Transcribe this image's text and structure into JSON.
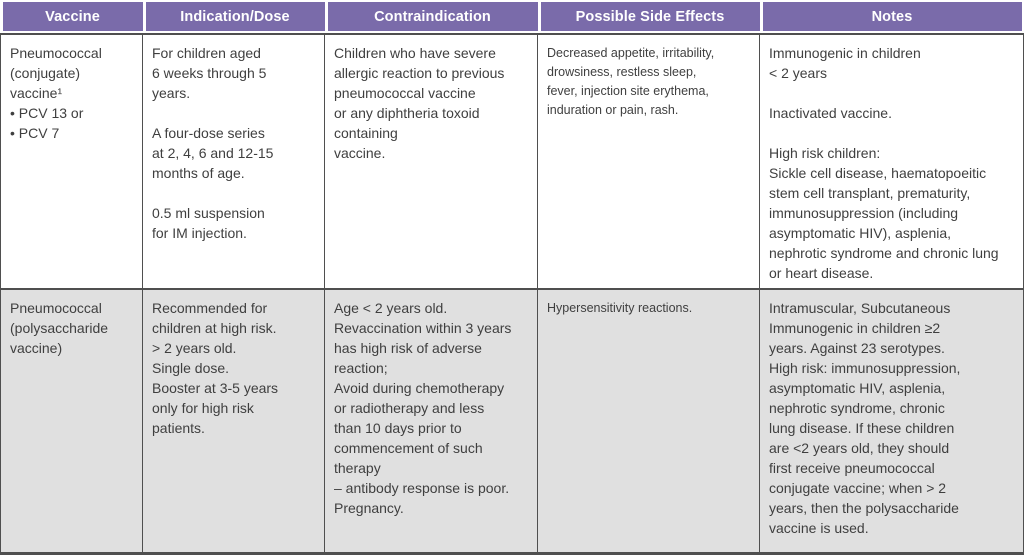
{
  "table": {
    "columns": [
      {
        "label": "Vaccine"
      },
      {
        "label": "Indication/Dose"
      },
      {
        "label": "Contraindication"
      },
      {
        "label": "Possible Side Effects"
      },
      {
        "label": "Notes"
      }
    ],
    "rows": [
      {
        "vaccine": "Pneumococcal\n(conjugate)\nvaccine¹\n• PCV 13 or\n• PCV 7",
        "indication_dose": "For children aged\n6 weeks through 5\nyears.\n\nA four-dose series\nat 2, 4, 6 and 12-15\nmonths of age.\n\n0.5 ml suspension\nfor IM injection.",
        "contraindication": "Children who have severe\nallergic reaction to previous\npneumococcal vaccine\nor any diphtheria toxoid\ncontaining\nvaccine.",
        "side_effects": "Decreased appetite, irritability,\ndrowsiness, restless sleep,\nfever, injection site erythema,\ninduration or pain, rash.",
        "notes": "Immunogenic in children\n< 2 years\n\nInactivated vaccine.\n\nHigh risk children:\nSickle cell disease, haematopoeitic\nstem cell transplant, prematurity,\nimmunosuppression (including\nasymptomatic HIV), asplenia,\nnephrotic syndrome and chronic lung\nor heart disease."
      },
      {
        "vaccine": "Pneumococcal\n(polysaccharide\nvaccine)",
        "indication_dose": "Recommended for\nchildren at high risk.\n> 2 years old.\nSingle dose.\nBooster at 3-5 years\nonly for high risk\npatients.",
        "contraindication": "Age < 2 years old.\nRevaccination within 3 years\nhas high risk of adverse\nreaction;\nAvoid during chemotherapy\nor radiotherapy and less\nthan 10 days prior to\ncommencement of such\ntherapy\n– antibody response is poor.\nPregnancy.",
        "side_effects": "Hypersensitivity reactions.",
        "notes": "Intramuscular, Subcutaneous\nImmunogenic in children ≥2\nyears. Against 23 serotypes.\nHigh risk: immunosuppression,\nasymptomatic HIV, asplenia,\nnephrotic syndrome, chronic\nlung disease. If these children\nare <2 years old, they should\nfirst receive pneumococcal\nconjugate vaccine; when > 2\nyears, then the polysaccharide\nvaccine is used."
      }
    ]
  },
  "colors": {
    "header_bg": "#7a6baa",
    "header_text": "#ffffff",
    "row1_bg": "#ffffff",
    "row2_bg": "#e0e0e0",
    "border": "#4f4f4f",
    "body_text": "#3f3f3f"
  }
}
